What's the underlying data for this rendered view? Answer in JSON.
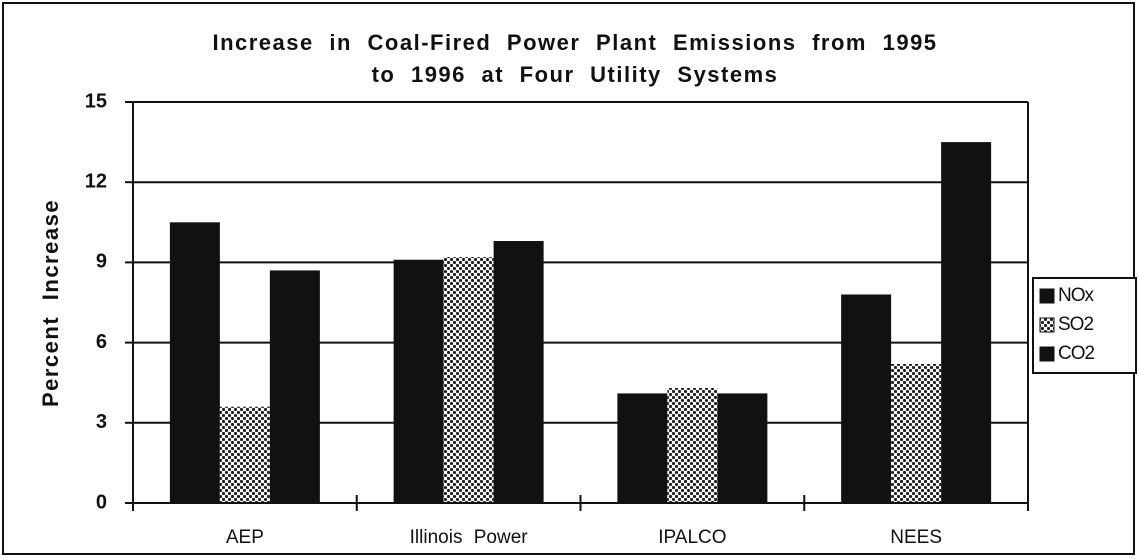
{
  "chart_data": {
    "type": "bar",
    "title": [
      "Increase in Coal-Fired Power Plant Emissions from 1995",
      "to 1996 at Four Utility Systems"
    ],
    "y_label": "Percent Increase",
    "categories": [
      "AEP",
      "Illinois Power",
      "IPALCO",
      "NEES"
    ],
    "series": [
      {
        "name": "NOx",
        "color": "#111111",
        "values": [
          10.5,
          9.1,
          4.1,
          7.8
        ]
      },
      {
        "name": "SO2",
        "color": "#111111",
        "hatch": true,
        "values": [
          3.6,
          9.2,
          4.3,
          5.2
        ]
      },
      {
        "name": "CO2",
        "color": "#111111",
        "values": [
          8.7,
          9.8,
          4.1,
          13.5
        ]
      }
    ],
    "ylim": [
      0,
      15
    ],
    "yticks": [
      0,
      3,
      6,
      9,
      12,
      15
    ],
    "grid": true,
    "legend": "right"
  }
}
